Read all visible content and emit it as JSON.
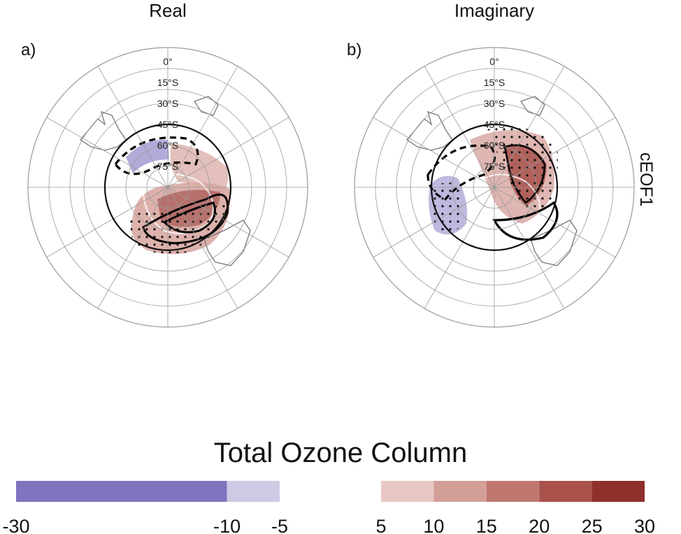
{
  "figure": {
    "row_title": "cEOF1",
    "colorbar_title": "Total Ozone Column"
  },
  "panels": [
    {
      "id": "a",
      "label": "a)",
      "title": "Real"
    },
    {
      "id": "b",
      "label": "b)",
      "title": "Imaginary"
    }
  ],
  "lat_labels": [
    "0°",
    "15°S",
    "30°S",
    "45°S",
    "60°S",
    "75°S"
  ],
  "chart_data": {
    "type": "heatmap",
    "projection": "south-polar-stereographic",
    "title": "Total Ozone Column",
    "colorbar": {
      "negative_bins": [
        {
          "from": -30,
          "to": -10,
          "color": "#8173be"
        },
        {
          "from": -10,
          "to": -5,
          "color": "#d0c9e4"
        }
      ],
      "positive_bins": [
        {
          "from": 5,
          "to": 10,
          "color": "#e8c7c3"
        },
        {
          "from": 10,
          "to": 15,
          "color": "#d49e98"
        },
        {
          "from": 15,
          "to": 20,
          "color": "#bf7770"
        },
        {
          "from": 20,
          "to": 25,
          "color": "#a9524c"
        },
        {
          "from": 25,
          "to": 30,
          "color": "#8f302c"
        }
      ],
      "tick_labels": [
        "-30",
        "-10",
        "-5",
        "5",
        "10",
        "15",
        "20",
        "25",
        "30"
      ]
    },
    "latitude_circles": [
      "0°",
      "15°S",
      "30°S",
      "45°S",
      "60°S",
      "75°S"
    ],
    "longitude_lines_every_deg": 30,
    "grid": true
  },
  "colors": {
    "grid": "#9a9a9a",
    "coast": "#777777",
    "contour": "#000000"
  }
}
